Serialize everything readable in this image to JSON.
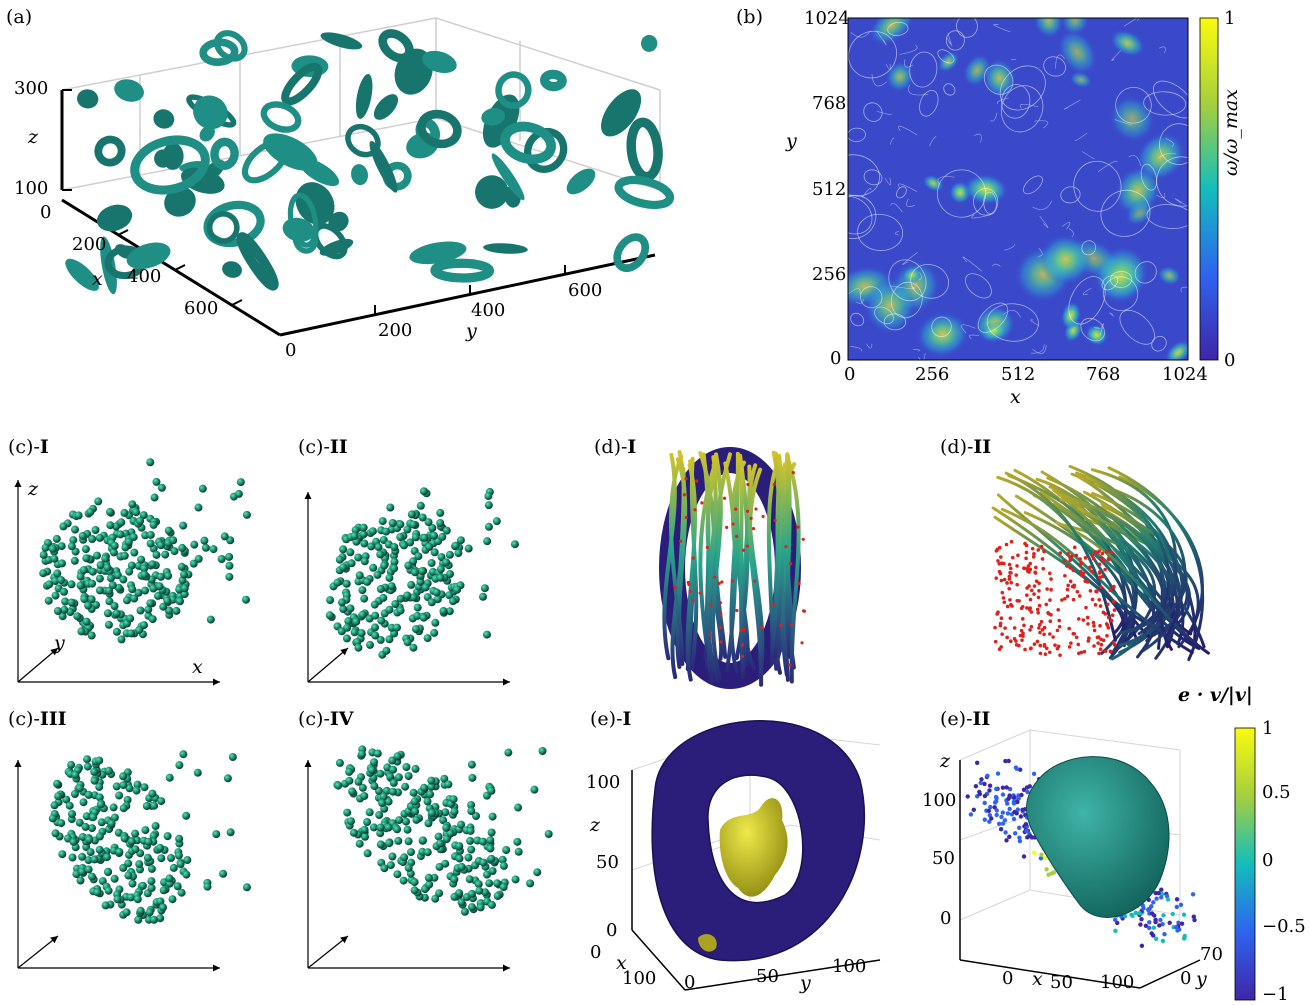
{
  "colors": {
    "teal": "#1f8f85",
    "teal_dark": "#0f5e57",
    "navy": "#2b1d7a",
    "yellow": "#d8d21c",
    "field_blue": "#3a49c9",
    "red_points": "#e0201a"
  },
  "panel_a": {
    "label": "(a)",
    "z_ticks": [
      "300",
      "100"
    ],
    "x_ticks": [
      "0",
      "200",
      "400",
      "600"
    ],
    "y_ticks": [
      "0",
      "200",
      "400",
      "600"
    ],
    "z_label": "z",
    "x_label": "x",
    "y_label": "y"
  },
  "panel_b": {
    "label": "(b)",
    "y_ticks": [
      "0",
      "256",
      "512",
      "768",
      "1024"
    ],
    "x_ticks": [
      "0",
      "256",
      "512",
      "768",
      "1024"
    ],
    "x_label": "x",
    "y_label": "y",
    "colorbar_label": "ω/ω_max",
    "colorbar_ticks": [
      "1",
      "0"
    ]
  },
  "panel_c": {
    "labels": [
      {
        "prefix": "(c)-",
        "roman": "I"
      },
      {
        "prefix": "(c)-",
        "roman": "II"
      },
      {
        "prefix": "(c)-",
        "roman": "III"
      },
      {
        "prefix": "(c)-",
        "roman": "IV"
      }
    ],
    "axis_labels": {
      "z": "z",
      "y": "y",
      "x": "x"
    }
  },
  "panel_d": {
    "labels": [
      {
        "prefix": "(d)-",
        "roman": "I"
      },
      {
        "prefix": "(d)-",
        "roman": "II"
      }
    ]
  },
  "panel_e": {
    "labels": [
      {
        "prefix": "(e)-",
        "roman": "I"
      },
      {
        "prefix": "(e)-",
        "roman": "II"
      }
    ],
    "e1": {
      "z_ticks": [
        "100",
        "50",
        "0"
      ],
      "x_ticks": [
        "0",
        "100"
      ],
      "y_ticks": [
        "0",
        "50",
        "100"
      ],
      "z_label": "z",
      "x_label": "x",
      "y_label": "y"
    },
    "e2": {
      "z_ticks": [
        "100",
        "50",
        "0"
      ],
      "x_ticks": [
        "0",
        "50",
        "100"
      ],
      "y_ticks": [
        "70",
        "0"
      ],
      "z_label": "z",
      "x_label": "x",
      "y_label": "y",
      "colorbar_title": "e · v/|v|",
      "colorbar_ticks": [
        "1",
        "0.5",
        "0",
        "−0.5",
        "−1"
      ]
    }
  }
}
